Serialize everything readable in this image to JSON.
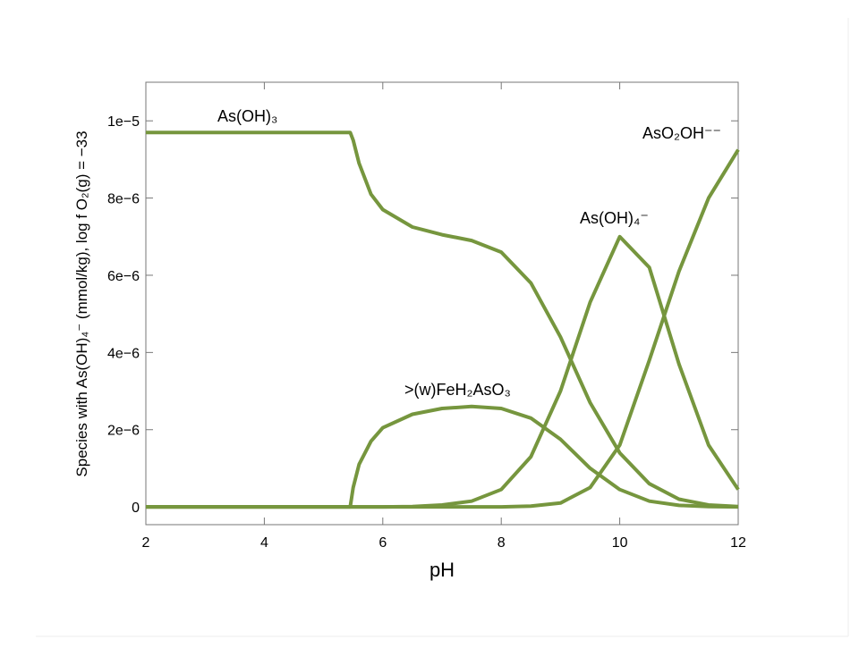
{
  "chart_data": {
    "type": "line",
    "x_label": "pH",
    "y_label": "Species with As(OH)₄⁻ (mmol/kg), log f O₂(g) = −33",
    "x": [
      2,
      2.5,
      3,
      3.5,
      4,
      4.5,
      5,
      5.45,
      5.5,
      5.6,
      5.8,
      6,
      6.5,
      7,
      7.5,
      8,
      8.5,
      9,
      9.5,
      10,
      10.5,
      11,
      11.5,
      12
    ],
    "series": [
      {
        "name": "As(OH)₃",
        "color": "#76963e",
        "values": [
          9.7e-06,
          9.7e-06,
          9.7e-06,
          9.7e-06,
          9.7e-06,
          9.7e-06,
          9.7e-06,
          9.7e-06,
          9.5e-06,
          8.9e-06,
          8.1e-06,
          7.7e-06,
          7.25e-06,
          7.05e-06,
          6.9e-06,
          6.6e-06,
          5.8e-06,
          4.4e-06,
          2.7e-06,
          1.4e-06,
          6e-07,
          2e-07,
          5e-08,
          1e-08
        ]
      },
      {
        "name": ">(w)FeH₂AsO₃",
        "color": "#76963e",
        "values": [
          0,
          0,
          0,
          0,
          0,
          0,
          0,
          0,
          5e-07,
          1.1e-06,
          1.7e-06,
          2.05e-06,
          2.4e-06,
          2.55e-06,
          2.6e-06,
          2.55e-06,
          2.3e-06,
          1.75e-06,
          1e-06,
          4.5e-07,
          1.5e-07,
          4e-08,
          1e-08,
          0
        ]
      },
      {
        "name": "As(OH)₄⁻",
        "color": "#76963e",
        "values": [
          0,
          0,
          0,
          0,
          0,
          0,
          0,
          0,
          0,
          0,
          0,
          0,
          1e-08,
          5e-08,
          1.5e-07,
          4.5e-07,
          1.3e-06,
          3e-06,
          5.3e-06,
          7e-06,
          6.2e-06,
          3.7e-06,
          1.6e-06,
          4.5e-07
        ]
      },
      {
        "name": "AsO₂OH⁻⁻",
        "color": "#76963e",
        "values": [
          0,
          0,
          0,
          0,
          0,
          0,
          0,
          0,
          0,
          0,
          0,
          0,
          0,
          0,
          0,
          0,
          2e-08,
          1e-07,
          5e-07,
          1.6e-06,
          3.8e-06,
          6.1e-06,
          8e-06,
          9.25e-06
        ]
      }
    ],
    "xlim": [
      2,
      12
    ],
    "xticks": [
      2,
      4,
      6,
      8,
      10,
      12
    ],
    "ylim": [
      -4.6e-07,
      1.1e-05
    ],
    "yticks": [
      0,
      {
        "value": 2e-06,
        "label": "2e−6"
      },
      {
        "value": 4e-06,
        "label": "4e−6"
      },
      {
        "value": 6e-06,
        "label": "6e−6"
      },
      {
        "value": 8e-06,
        "label": "8e−6"
      },
      {
        "value": 1e-05,
        "label": "1e−5"
      }
    ],
    "grid": false
  }
}
